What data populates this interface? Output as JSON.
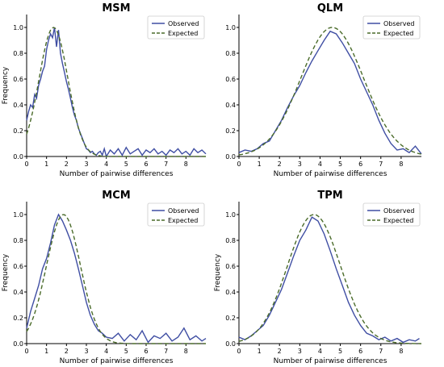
{
  "colors": {
    "observed": "#3f4ea3",
    "expected": "#4a6b2a",
    "axis": "#000000"
  },
  "chart_data": [
    {
      "type": "line",
      "title": "MSM",
      "xlabel": "Number of pairwise differences",
      "ylabel": "Frequency",
      "xlim": [
        0,
        9
      ],
      "ylim": [
        0,
        1.1
      ],
      "xticks": [
        "0",
        "1",
        "2",
        "3",
        "4",
        "5",
        "6",
        "7",
        "8"
      ],
      "yticks": [
        "0.0",
        "0.2",
        "0.4",
        "0.6",
        "0.8",
        "1.0"
      ],
      "legend": {
        "position": "top-right",
        "entries": [
          "Observed",
          "Expected"
        ]
      },
      "series": [
        {
          "name": "Observed",
          "style": "solid",
          "x": [
            0,
            0.1,
            0.2,
            0.3,
            0.4,
            0.5,
            0.6,
            0.7,
            0.8,
            0.9,
            1.0,
            1.1,
            1.2,
            1.3,
            1.4,
            1.5,
            1.6,
            1.7,
            1.8,
            1.9,
            2.0,
            2.1,
            2.2,
            2.3,
            2.4,
            2.5,
            2.6,
            2.7,
            2.8,
            2.9,
            3.0,
            3.1,
            3.2,
            3.3,
            3.4,
            3.5,
            3.6,
            3.7,
            3.8,
            3.9,
            4.0,
            4.2,
            4.4,
            4.6,
            4.8,
            5.0,
            5.2,
            5.4,
            5.6,
            5.8,
            6.0,
            6.2,
            6.4,
            6.6,
            6.8,
            7.0,
            7.2,
            7.4,
            7.6,
            7.8,
            8.0,
            8.2,
            8.4,
            8.6,
            8.8,
            9.0
          ],
          "y": [
            0.28,
            0.35,
            0.4,
            0.38,
            0.48,
            0.45,
            0.55,
            0.6,
            0.66,
            0.7,
            0.83,
            0.9,
            0.95,
            0.92,
            1.0,
            0.85,
            0.98,
            0.8,
            0.72,
            0.65,
            0.58,
            0.52,
            0.45,
            0.38,
            0.32,
            0.28,
            0.22,
            0.18,
            0.14,
            0.1,
            0.06,
            0.05,
            0.03,
            0.04,
            0.02,
            0.01,
            0.03,
            0.04,
            0.01,
            0.06,
            0.0,
            0.05,
            0.02,
            0.06,
            0.01,
            0.07,
            0.02,
            0.04,
            0.06,
            0.01,
            0.05,
            0.03,
            0.06,
            0.02,
            0.04,
            0.01,
            0.05,
            0.03,
            0.06,
            0.02,
            0.04,
            0.01,
            0.06,
            0.03,
            0.05,
            0.02
          ]
        },
        {
          "name": "Expected",
          "style": "dashed",
          "peak": 1.35,
          "sigma": 0.72
        }
      ]
    },
    {
      "type": "line",
      "title": "QLM",
      "xlabel": "Number of pairwise differences",
      "ylabel": "",
      "xlim": [
        0,
        9
      ],
      "ylim": [
        0,
        1.1
      ],
      "xticks": [
        "0",
        "1",
        "2",
        "3",
        "4",
        "5",
        "6",
        "7",
        "8"
      ],
      "yticks": [
        "0.0",
        "0.2",
        "0.4",
        "0.6",
        "0.8",
        "1.0"
      ],
      "legend": {
        "position": "top-right",
        "entries": [
          "Observed",
          "Expected"
        ]
      },
      "series": [
        {
          "name": "Observed",
          "style": "solid",
          "x": [
            0,
            0.3,
            0.6,
            0.9,
            1.2,
            1.5,
            1.8,
            2.1,
            2.4,
            2.7,
            3.0,
            3.3,
            3.6,
            3.9,
            4.2,
            4.5,
            4.8,
            5.1,
            5.4,
            5.7,
            6.0,
            6.3,
            6.6,
            6.9,
            7.2,
            7.5,
            7.8,
            8.1,
            8.4,
            8.7,
            9.0
          ],
          "y": [
            0.03,
            0.05,
            0.04,
            0.06,
            0.1,
            0.12,
            0.2,
            0.28,
            0.38,
            0.47,
            0.55,
            0.65,
            0.74,
            0.82,
            0.9,
            0.97,
            0.95,
            0.88,
            0.8,
            0.72,
            0.6,
            0.5,
            0.4,
            0.28,
            0.18,
            0.1,
            0.05,
            0.06,
            0.03,
            0.08,
            0.02
          ]
        },
        {
          "name": "Expected",
          "style": "dashed",
          "peak": 4.6,
          "sigma": 1.55
        }
      ]
    },
    {
      "type": "line",
      "title": "MCM",
      "xlabel": "Number of pairwise differences",
      "ylabel": "Frequency",
      "xlim": [
        0,
        9
      ],
      "ylim": [
        0,
        1.1
      ],
      "xticks": [
        "0",
        "1",
        "2",
        "3",
        "4",
        "5",
        "6",
        "7",
        "8"
      ],
      "yticks": [
        "0.0",
        "0.2",
        "0.4",
        "0.6",
        "0.8",
        "1.0"
      ],
      "legend": {
        "position": "top-right",
        "entries": [
          "Observed",
          "Expected"
        ]
      },
      "series": [
        {
          "name": "Observed",
          "style": "solid",
          "x": [
            0,
            0.2,
            0.4,
            0.6,
            0.8,
            1.0,
            1.2,
            1.4,
            1.6,
            1.8,
            2.0,
            2.2,
            2.4,
            2.6,
            2.8,
            3.0,
            3.2,
            3.4,
            3.6,
            3.8,
            4.0,
            4.3,
            4.6,
            4.9,
            5.2,
            5.5,
            5.8,
            6.1,
            6.4,
            6.7,
            7.0,
            7.3,
            7.6,
            7.9,
            8.2,
            8.5,
            8.8,
            9.0
          ],
          "y": [
            0.12,
            0.25,
            0.35,
            0.45,
            0.58,
            0.66,
            0.78,
            0.92,
            1.0,
            0.95,
            0.88,
            0.8,
            0.7,
            0.58,
            0.45,
            0.32,
            0.22,
            0.15,
            0.1,
            0.08,
            0.05,
            0.04,
            0.08,
            0.02,
            0.07,
            0.03,
            0.1,
            0.01,
            0.06,
            0.04,
            0.08,
            0.02,
            0.05,
            0.12,
            0.03,
            0.06,
            0.02,
            0.04
          ]
        },
        {
          "name": "Expected",
          "style": "dashed",
          "peak": 1.85,
          "sigma": 0.85
        }
      ]
    },
    {
      "type": "line",
      "title": "TPM",
      "xlabel": "Number of pairwise differences",
      "ylabel": "Frequency",
      "xlim": [
        0,
        9
      ],
      "ylim": [
        0,
        1.1
      ],
      "xticks": [
        "0",
        "1",
        "2",
        "3",
        "4",
        "5",
        "6",
        "7",
        "8"
      ],
      "yticks": [
        "0.0",
        "0.2",
        "0.4",
        "0.6",
        "0.8",
        "1.0"
      ],
      "legend": {
        "position": "top-right",
        "entries": [
          "Observed",
          "Expected"
        ]
      },
      "series": [
        {
          "name": "Observed",
          "style": "solid",
          "x": [
            0,
            0.3,
            0.6,
            0.9,
            1.2,
            1.5,
            1.8,
            2.1,
            2.4,
            2.7,
            3.0,
            3.3,
            3.6,
            3.9,
            4.2,
            4.5,
            4.8,
            5.1,
            5.4,
            5.7,
            6.0,
            6.3,
            6.6,
            6.9,
            7.2,
            7.5,
            7.8,
            8.1,
            8.4,
            8.7,
            8.9
          ],
          "y": [
            0.05,
            0.03,
            0.06,
            0.1,
            0.14,
            0.22,
            0.32,
            0.42,
            0.55,
            0.68,
            0.8,
            0.88,
            0.98,
            0.95,
            0.85,
            0.72,
            0.58,
            0.45,
            0.32,
            0.22,
            0.14,
            0.08,
            0.06,
            0.03,
            0.05,
            0.02,
            0.04,
            0.01,
            0.03,
            0.02,
            0.04
          ]
        },
        {
          "name": "Expected",
          "style": "dashed",
          "peak": 3.7,
          "sigma": 1.3
        }
      ]
    }
  ]
}
